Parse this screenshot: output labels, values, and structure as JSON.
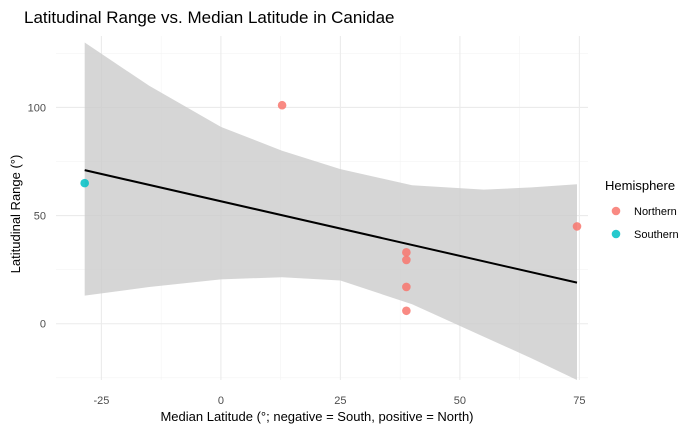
{
  "chart_data": {
    "type": "scatter",
    "title": "Latitudinal Range vs. Median Latitude in Canidae",
    "xlabel": "Median Latitude (°; negative = South, positive = North)",
    "ylabel": "Latitudinal Range (°)",
    "xlim": [
      -34.5,
      76.8
    ],
    "ylim": [
      -26,
      133
    ],
    "x_ticks": [
      -25,
      0,
      25,
      50,
      75
    ],
    "x_tick_labels": [
      "-25",
      "0",
      "25",
      "50",
      "75"
    ],
    "y_ticks": [
      0,
      50,
      100
    ],
    "y_tick_labels": [
      "0",
      "50",
      "100"
    ],
    "grid": true,
    "legend": {
      "title": "Hemisphere",
      "position": "right",
      "entries": [
        {
          "label": "Northern",
          "color": "#F8766D"
        },
        {
          "label": "Southern",
          "color": "#00BFC4"
        }
      ]
    },
    "series": [
      {
        "name": "Northern",
        "color": "#F8766D",
        "points": [
          {
            "x": 12.8,
            "y": 101
          },
          {
            "x": 38.8,
            "y": 33
          },
          {
            "x": 38.8,
            "y": 29.5
          },
          {
            "x": 38.8,
            "y": 17
          },
          {
            "x": 38.8,
            "y": 6
          },
          {
            "x": 74.5,
            "y": 45
          }
        ]
      },
      {
        "name": "Southern",
        "color": "#00BFC4",
        "points": [
          {
            "x": -28.5,
            "y": 65
          }
        ]
      }
    ],
    "trend_line": {
      "color": "#000000",
      "x_start": -28.5,
      "y_start": 71,
      "x_end": 74.5,
      "y_end": 19
    },
    "confidence_band": {
      "fill": "#cccccc",
      "upper": [
        {
          "x": -28.5,
          "y": 130
        },
        {
          "x": -15,
          "y": 110
        },
        {
          "x": 0,
          "y": 91
        },
        {
          "x": 12.8,
          "y": 80
        },
        {
          "x": 25,
          "y": 71.5
        },
        {
          "x": 40,
          "y": 64
        },
        {
          "x": 55,
          "y": 62
        },
        {
          "x": 65,
          "y": 63
        },
        {
          "x": 74.5,
          "y": 64.5
        }
      ],
      "lower": [
        {
          "x": -28.5,
          "y": 13
        },
        {
          "x": -15,
          "y": 17
        },
        {
          "x": 0,
          "y": 20.5
        },
        {
          "x": 12.8,
          "y": 21.5
        },
        {
          "x": 25,
          "y": 20
        },
        {
          "x": 40,
          "y": 9
        },
        {
          "x": 55,
          "y": -6
        },
        {
          "x": 65,
          "y": -16
        },
        {
          "x": 74.5,
          "y": -26
        }
      ]
    }
  }
}
